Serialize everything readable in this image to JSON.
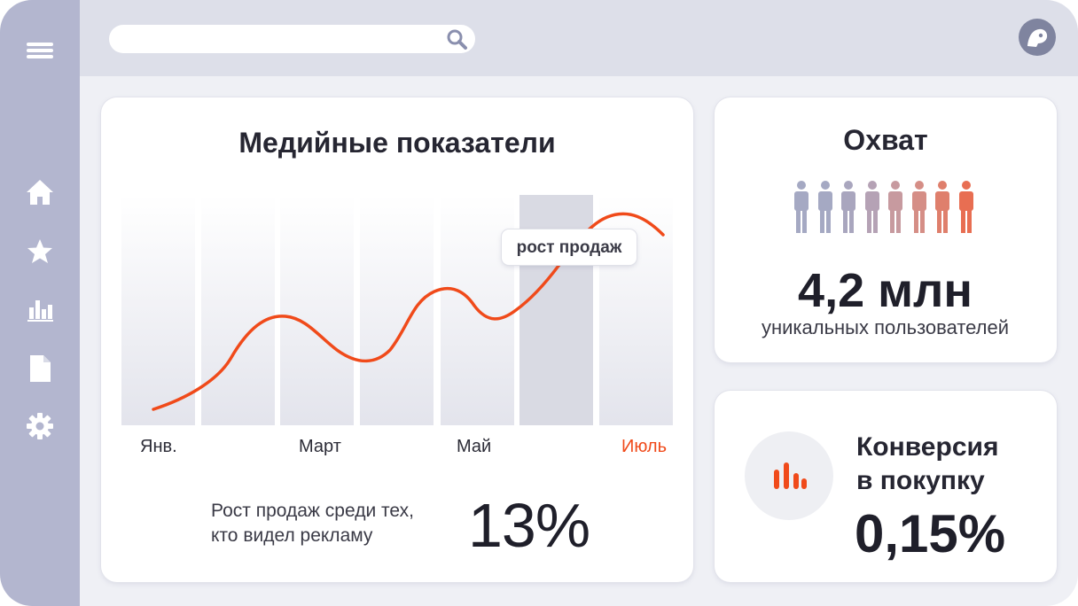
{
  "sidebar": {
    "items": [
      {
        "name": "menu-icon"
      },
      {
        "name": "home-icon"
      },
      {
        "name": "star-icon"
      },
      {
        "name": "bar-chart-icon"
      },
      {
        "name": "document-icon"
      },
      {
        "name": "gear-icon"
      }
    ],
    "color": "#b3b6cf"
  },
  "search": {
    "placeholder": "",
    "icon": "search-icon"
  },
  "profile": {
    "icon": "profile-avatar-icon"
  },
  "media": {
    "title": "Медийные показатели",
    "tooltip": "рост продаж",
    "months": [
      "Янв.",
      "Март",
      "Май",
      "Июль"
    ],
    "footnote_line1": "Рост продаж среди тех,",
    "footnote_line2": "кто видел рекламу",
    "value": "13%"
  },
  "chart_data": {
    "type": "line",
    "title": "Медийные показатели",
    "categories": [
      "Янв.",
      "Март",
      "Май",
      "Июль"
    ],
    "annotations": [
      "рост продаж"
    ],
    "highlighted_column": 6,
    "accent": "#f04a1a"
  },
  "reach": {
    "title": "Охват",
    "value": "4,2 млн",
    "caption": "уникальных пользователей",
    "people_count": 8
  },
  "conversion": {
    "title_line1": "Конверсия",
    "title_line2": "в покупку",
    "value": "0,15%",
    "icon": "bar-chart-icon"
  },
  "colors": {
    "accent": "#f04a1a",
    "sidebar": "#b3b6cf",
    "background": "#eff0f5"
  }
}
